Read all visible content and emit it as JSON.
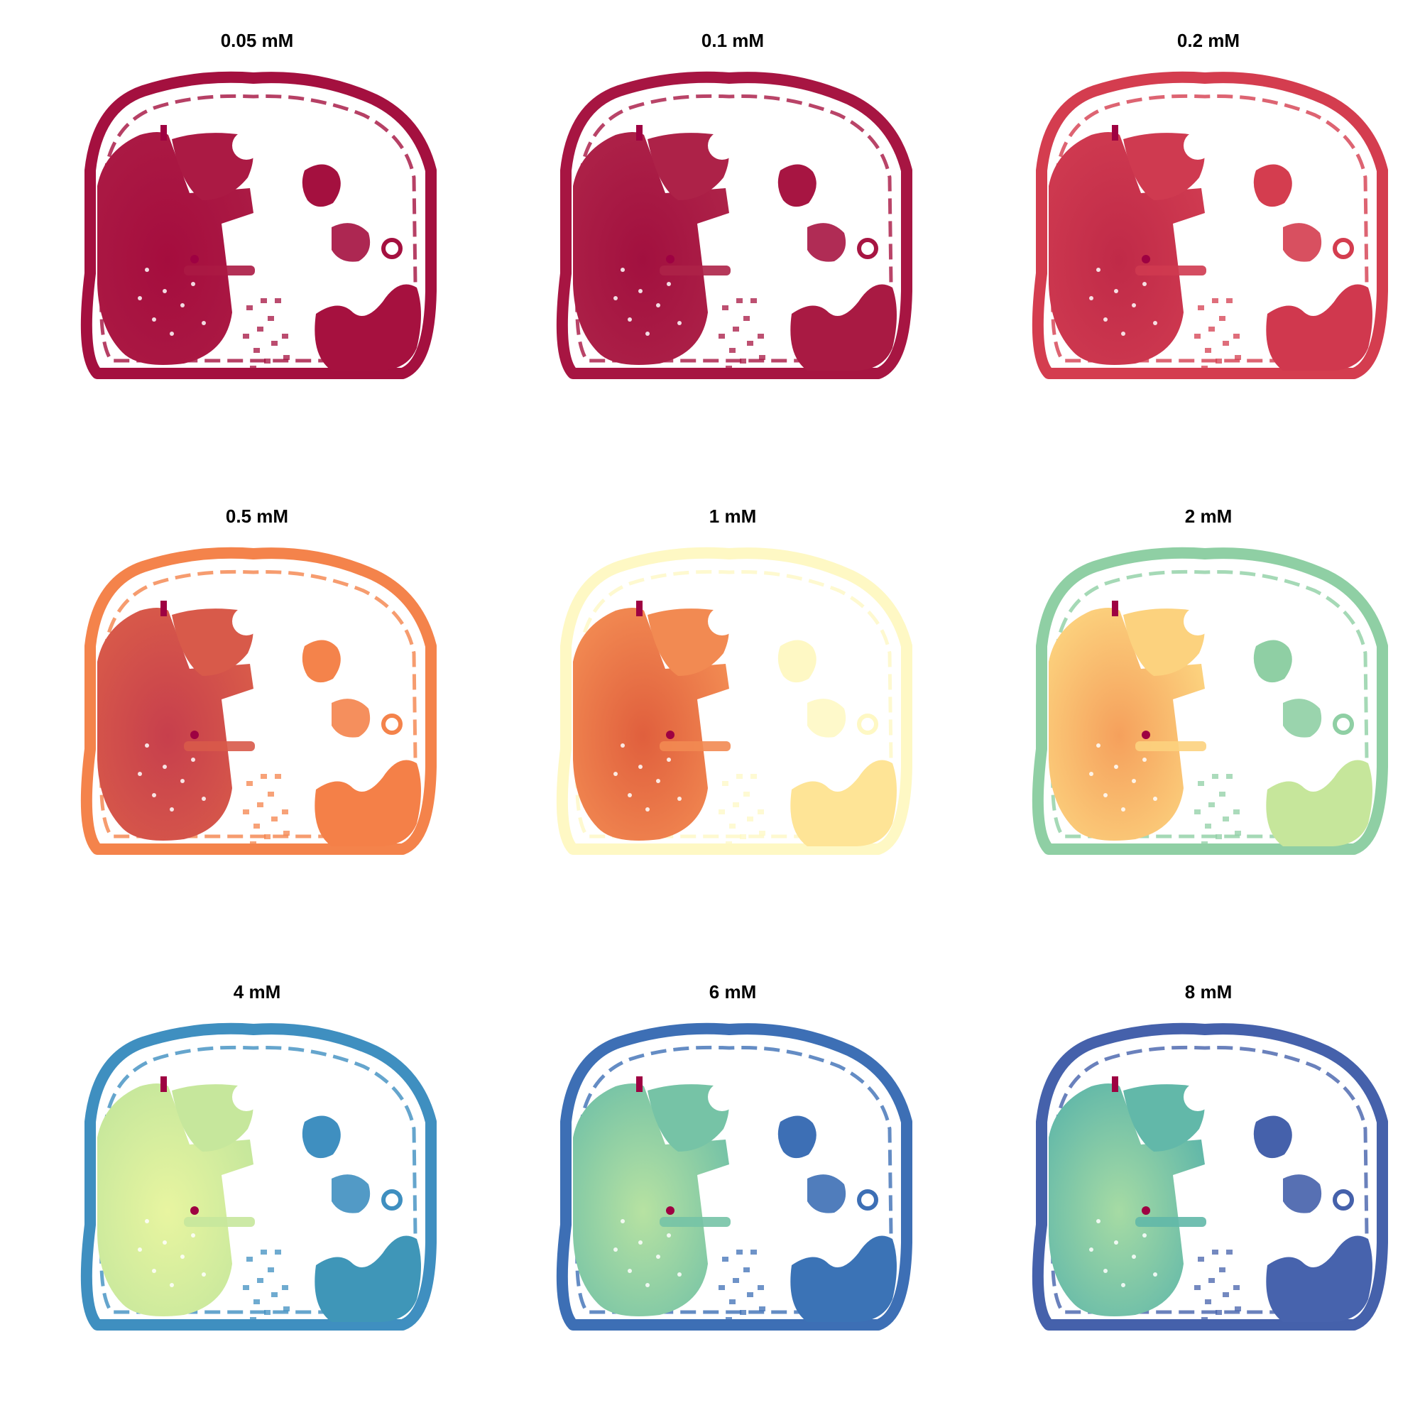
{
  "figure": {
    "panels": [
      {
        "title": "0.05 mM",
        "colors": {
          "body": "#a4103f",
          "liver": "#a50d3e",
          "liver2": "#ab1a44",
          "spleen": "#a6113f",
          "spot": "#9e0142"
        }
      },
      {
        "title": "0.1 mM",
        "colors": {
          "body": "#a71542",
          "liver": "#a2103f",
          "liver2": "#ad2248",
          "spleen": "#a91a43",
          "spot": "#9e0142"
        }
      },
      {
        "title": "0.2 mM",
        "colors": {
          "body": "#d43d4f",
          "liver": "#c02a48",
          "liver2": "#cf3a50",
          "spleen": "#d0384e",
          "spot": "#9e0142"
        }
      },
      {
        "title": "0.5 mM",
        "colors": {
          "body": "#f4834b",
          "liver": "#c73f4c",
          "liver2": "#d85a4a",
          "spleen": "#f48048",
          "spot": "#9e0142"
        }
      },
      {
        "title": "1 mM",
        "colors": {
          "body": "#fef8c4",
          "liver": "#e05f3d",
          "liver2": "#f28a52",
          "spleen": "#fee496",
          "spot": "#9e0142"
        }
      },
      {
        "title": "2 mM",
        "colors": {
          "body": "#8fcfa4",
          "liver": "#f5a05c",
          "liver2": "#fcd27e",
          "spleen": "#c6e69b",
          "spot": "#9e0142"
        }
      },
      {
        "title": "4 mM",
        "colors": {
          "body": "#3f8fc0",
          "liver": "#e8f5a0",
          "liver2": "#c6e79c",
          "spleen": "#3f96b8",
          "spot": "#9e0142"
        }
      },
      {
        "title": "6 mM",
        "colors": {
          "body": "#3d6fb5",
          "liver": "#b7e2a2",
          "liver2": "#76c3a6",
          "spleen": "#3b73b6",
          "spot": "#9e0142"
        }
      },
      {
        "title": "8 mM",
        "colors": {
          "body": "#4561ab",
          "liver": "#a6dba4",
          "liver2": "#62b8a9",
          "spleen": "#4763ad",
          "spot": "#9e0142"
        }
      }
    ]
  }
}
